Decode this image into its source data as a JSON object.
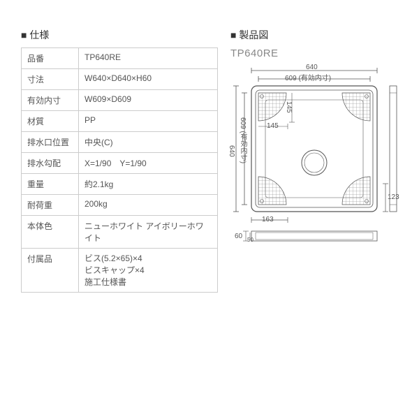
{
  "colors": {
    "text": "#555555",
    "heading": "#333333",
    "border": "#cccccc",
    "bg": "#ffffff",
    "diagram_line": "#555555",
    "hatch": "#888888"
  },
  "spec": {
    "title": "■ 仕様",
    "rows": [
      {
        "label": "品番",
        "value": "TP640RE"
      },
      {
        "label": "寸法",
        "value": "W640×D640×H60"
      },
      {
        "label": "有効内寸",
        "value": "W609×D609"
      },
      {
        "label": "材質",
        "value": "PP"
      },
      {
        "label": "排水口位置",
        "value": "中央(C)"
      },
      {
        "label": "排水勾配",
        "value": "X=1/90　Y=1/90"
      },
      {
        "label": "重量",
        "value": "約2.1kg"
      },
      {
        "label": "耐荷重",
        "value": "200kg"
      },
      {
        "label": "本体色",
        "value": "ニューホワイト アイボリーホワイト"
      },
      {
        "label": "付属品",
        "lines": [
          "ビス(5.2×65)×4",
          "ビスキャップ×4",
          "施工仕様書"
        ]
      }
    ]
  },
  "drawing": {
    "title": "■ 製品図",
    "model": "TP640RE",
    "dims": {
      "outer": "640",
      "inner": "609 (有効内寸)",
      "corner_a": "145",
      "corner_b": "145",
      "bottom_a": "163",
      "right_a": "123",
      "height": "60",
      "height_inner": "50"
    }
  }
}
